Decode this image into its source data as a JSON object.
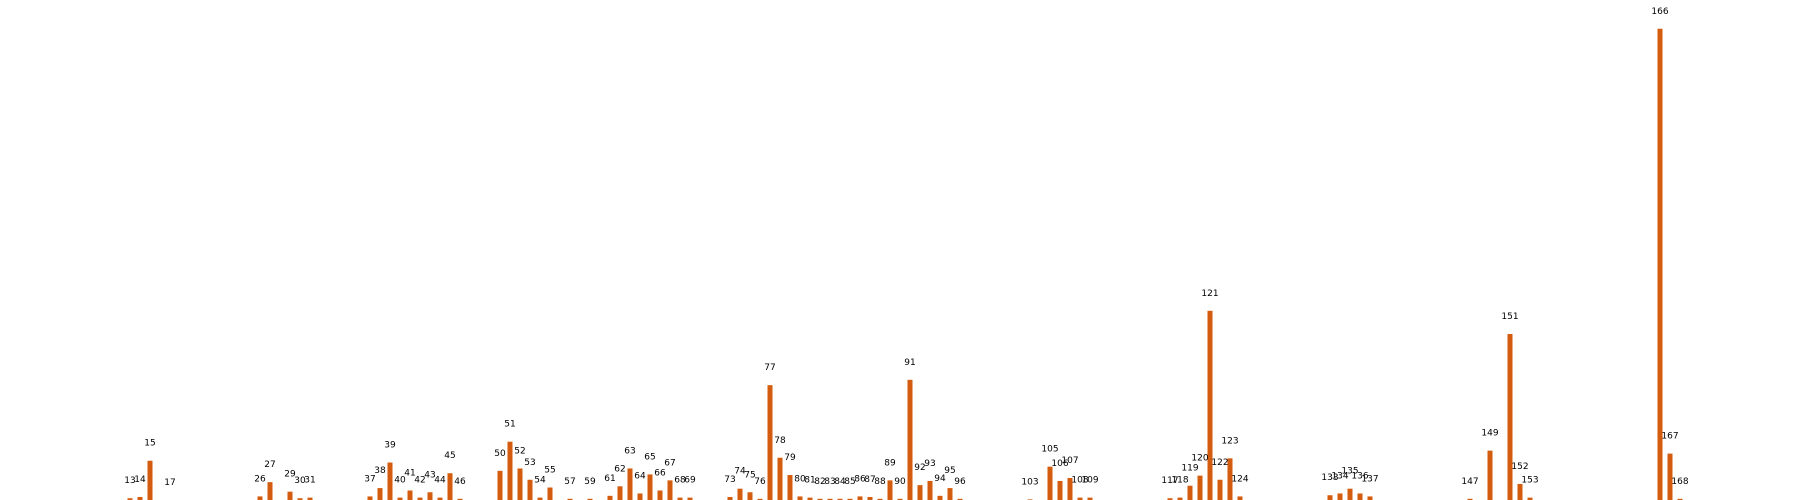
{
  "chart_data": {
    "type": "bar",
    "categories": [
      13,
      14,
      15,
      17,
      26,
      27,
      29,
      30,
      31,
      37,
      38,
      39,
      40,
      41,
      42,
      43,
      44,
      45,
      46,
      50,
      51,
      52,
      53,
      54,
      55,
      57,
      59,
      61,
      62,
      63,
      64,
      65,
      66,
      67,
      68,
      69,
      73,
      74,
      75,
      76,
      77,
      78,
      79,
      80,
      81,
      82,
      83,
      84,
      85,
      86,
      87,
      88,
      89,
      90,
      91,
      92,
      93,
      94,
      95,
      96,
      103,
      105,
      106,
      107,
      108,
      109,
      117,
      118,
      119,
      120,
      121,
      122,
      123,
      124,
      133,
      134,
      135,
      136,
      137,
      147,
      149,
      151,
      152,
      153,
      166,
      167,
      168
    ],
    "values": [
      0.3,
      0.5,
      6.6,
      0,
      0.6,
      3,
      1.4,
      0.3,
      0.4,
      0.6,
      2,
      6.3,
      0.4,
      1.6,
      0.4,
      1.3,
      0.4,
      4.5,
      0.2,
      4.9,
      9.8,
      5.3,
      3.4,
      0.4,
      2.1,
      0.2,
      0.2,
      0.7,
      2.3,
      5.3,
      1.1,
      4.3,
      1.6,
      3.3,
      0.4,
      0.4,
      0.5,
      1.9,
      1.3,
      0.2,
      19.3,
      7.1,
      4.2,
      0.6,
      0.4,
      0.2,
      0.2,
      0.2,
      0.2,
      0.6,
      0.5,
      0.2,
      3.3,
      0.2,
      20.2,
      2.5,
      3.2,
      0.7,
      2,
      0.2,
      0.1,
      5.6,
      3.2,
      3.7,
      0.4,
      0.4,
      0.3,
      0.4,
      2.4,
      4.1,
      31.8,
      3.4,
      7,
      0.6,
      0.8,
      1.1,
      1.9,
      1.1,
      0.6,
      0.2,
      8.3,
      27.9,
      2.7,
      0.4,
      79.2,
      7.8,
      0.2
    ],
    "xlim": [
      0,
      180
    ],
    "ylim": [
      0,
      80
    ],
    "bar_color": "#d45c0e",
    "background": "#ffffff",
    "axes_visible": false,
    "grid": false,
    "value_labels": "category"
  }
}
